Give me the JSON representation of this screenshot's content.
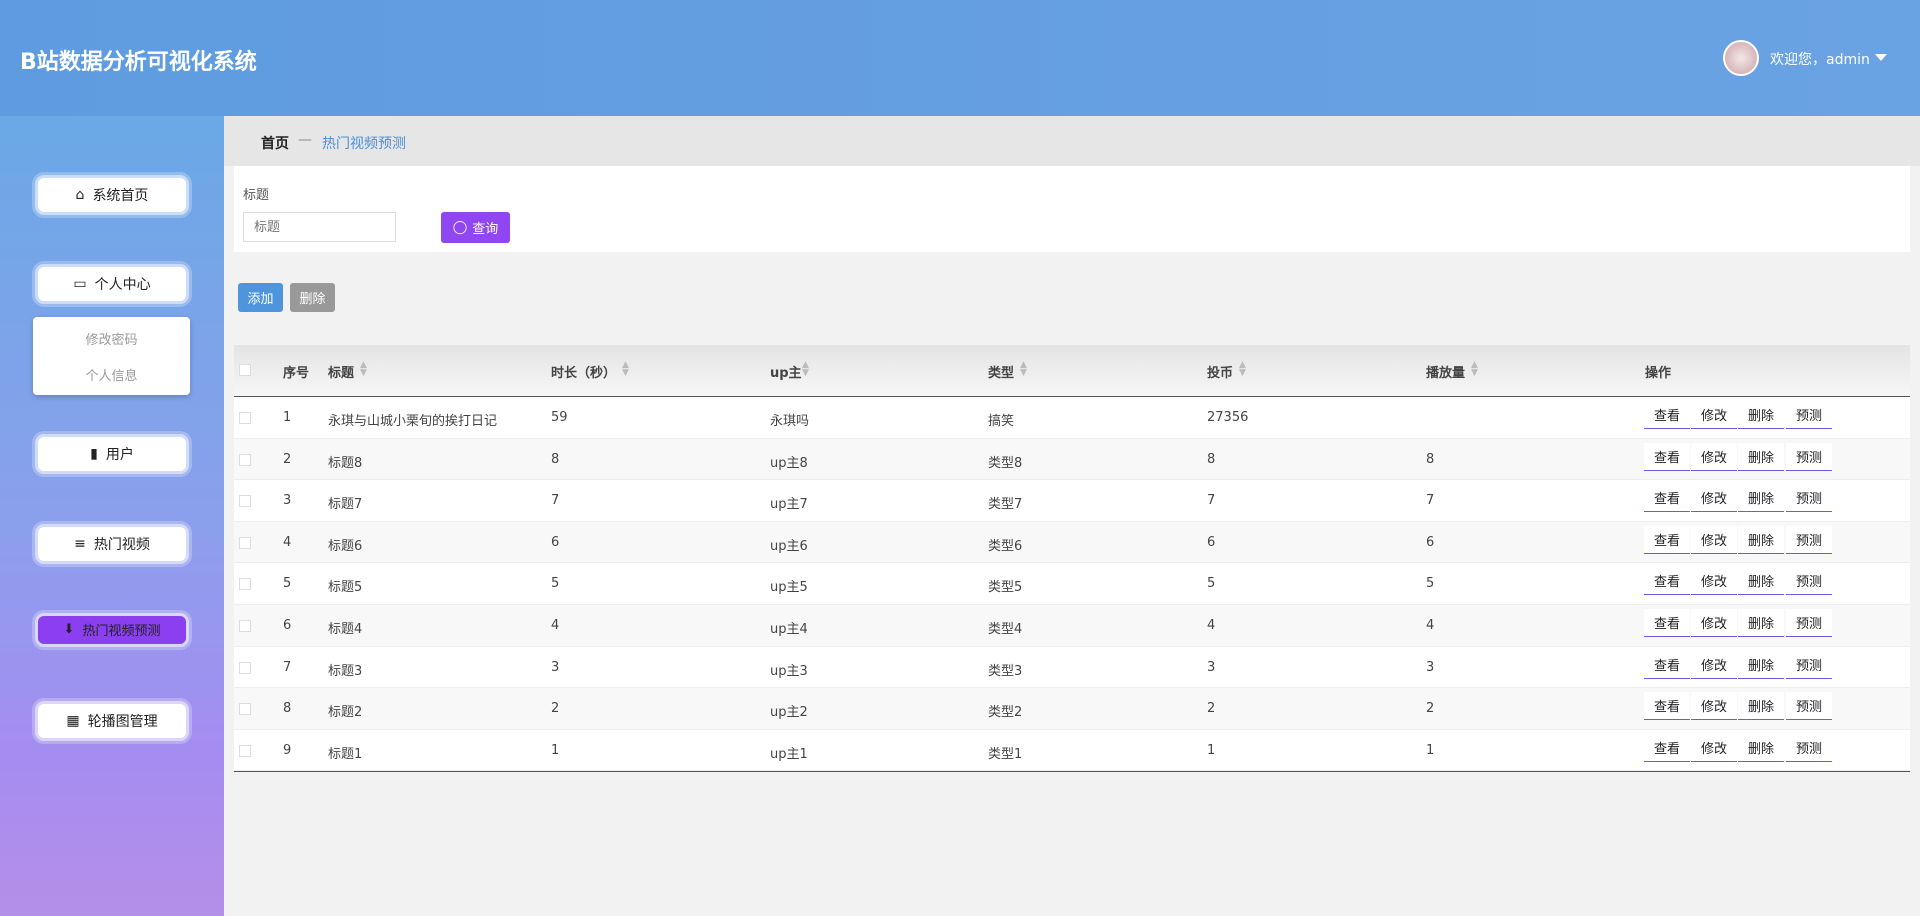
{
  "header": {
    "title": "B站数据分析可视化系统",
    "greeting": "欢迎您，admin"
  },
  "breadcrumb": {
    "home": "首页",
    "current": "热门视频预测"
  },
  "menu": {
    "items": [
      "系统首页",
      "个人中心",
      "用户",
      "热门视频",
      "热门视频预测",
      "轮播图管理"
    ],
    "submenu": [
      "修改密码",
      "个人信息"
    ],
    "active": 4
  },
  "search": {
    "label": "标题",
    "placeholder": "标题",
    "button": "查询"
  },
  "toolbar": {
    "add": "添加",
    "delete": "删除"
  },
  "table": {
    "columns": [
      "序号",
      "标题",
      "时长（秒）",
      "up主",
      "类型",
      "投币",
      "播放量",
      "操作"
    ],
    "rows": [
      [
        "1",
        "永琪与山城小栗旬的挨打日记",
        "59",
        "永琪吗",
        "搞笑",
        "27356",
        null
      ],
      [
        "2",
        "标题8",
        "8",
        "up主8",
        "类型8",
        "8",
        "8"
      ],
      [
        "3",
        "标题7",
        "7",
        "up主7",
        "类型7",
        "7",
        "7"
      ],
      [
        "4",
        "标题6",
        "6",
        "up主6",
        "类型6",
        "6",
        "6"
      ],
      [
        "5",
        "标题5",
        "5",
        "up主5",
        "类型5",
        "5",
        "5"
      ],
      [
        "6",
        "标题4",
        "4",
        "up主4",
        "类型4",
        "4",
        "4"
      ],
      [
        "7",
        "标题3",
        "3",
        "up主3",
        "类型3",
        "3",
        "3"
      ],
      [
        "8",
        "标题2",
        "2",
        "up主2",
        "类型2",
        "2",
        "2"
      ],
      [
        "9",
        "标题1",
        "1",
        "up主1",
        "类型1",
        "1",
        "1"
      ]
    ],
    "actions": [
      "查看",
      "修改",
      "删除",
      "预测"
    ]
  }
}
